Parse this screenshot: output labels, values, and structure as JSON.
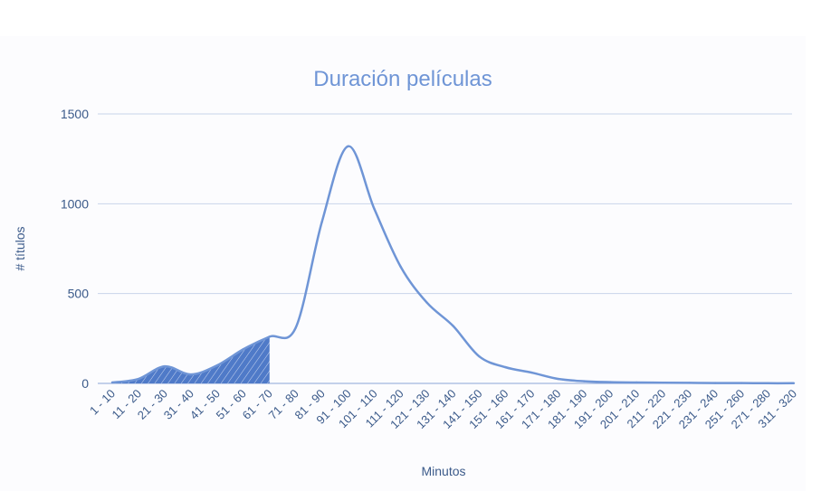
{
  "chart_data": {
    "type": "line",
    "title": "Duración películas",
    "xlabel": "Minutos",
    "ylabel": "# títulos",
    "ylim": [
      0,
      1500
    ],
    "yticks": [
      0,
      500,
      1000,
      1500
    ],
    "grid": true,
    "legend": "none",
    "colors": {
      "line": "#6f95d6",
      "text": "#3b5a8a",
      "title": "#6f95d6",
      "grid": "#c9d4ea"
    },
    "categories": [
      "1 - 10",
      "11 - 20",
      "21 - 30",
      "31 - 40",
      "41 - 50",
      "51 - 60",
      "61 - 70",
      "71 - 80",
      "81 - 90",
      "91 - 100",
      "101 - 110",
      "111 - 120",
      "121 - 130",
      "131 - 140",
      "141 - 150",
      "151 - 160",
      "161 - 170",
      "171 - 180",
      "181 - 190",
      "191 - 200",
      "201 - 210",
      "211 - 220",
      "221 - 230",
      "231 - 240",
      "251 - 260",
      "271 - 280",
      "311 - 320"
    ],
    "series": [
      {
        "values": [
          5,
          25,
          95,
          50,
          100,
          190,
          260,
          310,
          900,
          1320,
          970,
          650,
          450,
          320,
          150,
          90,
          60,
          25,
          12,
          7,
          5,
          4,
          3,
          2,
          2,
          1,
          1
        ],
        "shaded_categories": [
          "1 - 10",
          "11 - 20",
          "21 - 30",
          "31 - 40",
          "41 - 50",
          "51 - 60",
          "61 - 70"
        ]
      }
    ]
  }
}
